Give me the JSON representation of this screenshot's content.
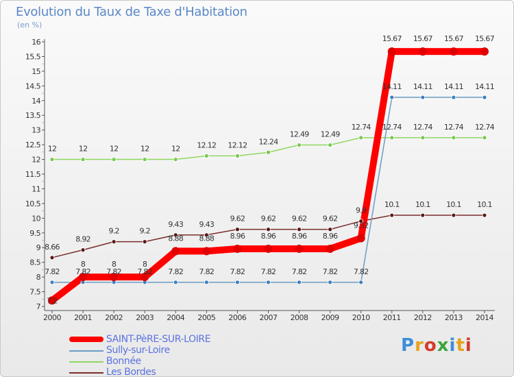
{
  "title": "Evolution du Taux de Taxe d'Habitation",
  "unit_label": "(en %)",
  "brand": "Proxiti",
  "chart_data": {
    "type": "line",
    "title": "Evolution du Taux de Taxe d'Habitation",
    "ylabel": "(en %)",
    "xlabel": "",
    "ylim": [
      7,
      16
    ],
    "grid": false,
    "legend": "bottom-left",
    "categories": [
      "2000",
      "2001",
      "2002",
      "2003",
      "2004",
      "2005",
      "2006",
      "2007",
      "2008",
      "2009",
      "2010",
      "2011",
      "2012",
      "2013",
      "2014"
    ],
    "yticks": [
      "7",
      "7.5",
      "8",
      "8.5",
      "9",
      "9.5",
      "10",
      "10.5",
      "11",
      "11.5",
      "12",
      "12.5",
      "13",
      "13.5",
      "14",
      "14.5",
      "15",
      "15.5",
      "16"
    ],
    "series": [
      {
        "name": "SAINT-PèRE-SUR-LOIRE",
        "color": "#ff0000",
        "marker": "#e00000",
        "values": [
          7.2,
          8,
          8,
          8,
          8.88,
          8.88,
          8.96,
          8.96,
          8.96,
          8.96,
          9.32,
          15.67,
          15.67,
          15.67,
          15.67
        ],
        "labels": [
          "7.2",
          "8",
          "8",
          "8",
          "8.88",
          "8.88",
          "8.96",
          "8.96",
          "8.96",
          "8.96",
          "9.32",
          "15.67",
          "15.67",
          "15.67",
          "15.67"
        ]
      },
      {
        "name": "Sully-sur-Loire",
        "color": "#6b9cc4",
        "marker": "#3d7fbf",
        "values": [
          7.82,
          7.82,
          7.82,
          7.82,
          7.82,
          7.82,
          7.82,
          7.82,
          7.82,
          7.82,
          7.82,
          14.11,
          14.11,
          14.11,
          14.11
        ],
        "labels": [
          "7.82",
          "7.82",
          "7.82",
          "7.82",
          "7.82",
          "7.82",
          "7.82",
          "7.82",
          "7.82",
          "7.82",
          "7.82",
          "14.11",
          "14.11",
          "14.11",
          "14.11"
        ]
      },
      {
        "name": "Bonnée",
        "color": "#8ed860",
        "marker": "#78c850",
        "values": [
          12,
          12,
          12,
          12,
          12,
          12.12,
          12.12,
          12.24,
          12.49,
          12.49,
          12.74,
          12.74,
          12.74,
          12.74,
          12.74
        ],
        "labels": [
          "12",
          "12",
          "12",
          "12",
          "12",
          "12.12",
          "12.12",
          "12.24",
          "12.49",
          "12.49",
          "12.74",
          "12.74",
          "12.74",
          "12.74",
          "12.74"
        ]
      },
      {
        "name": "Les Bordes",
        "color": "#7a2e2e",
        "marker": "#5a1818",
        "values": [
          8.66,
          8.92,
          9.2,
          9.2,
          9.43,
          9.43,
          9.62,
          9.62,
          9.62,
          9.62,
          9.9,
          10.1,
          10.1,
          10.1,
          10.1
        ],
        "labels": [
          "8.66",
          "8.92",
          "9.2",
          "9.2",
          "9.43",
          "9.43",
          "9.62",
          "9.62",
          "9.62",
          "9.62",
          "9.9",
          "10.1",
          "10.1",
          "10.1",
          "10.1"
        ]
      }
    ]
  }
}
